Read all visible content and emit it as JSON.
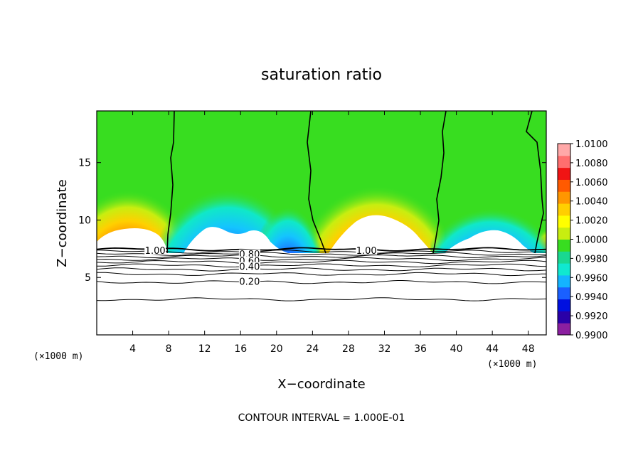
{
  "chart_data": {
    "type": "heatmap",
    "title": "saturation ratio",
    "xlabel": "X−coordinate",
    "ylabel": "Z−coordinate",
    "x_unit_left": "(×1000 m)",
    "x_unit_right": "(×1000 m)",
    "xlim": [
      0,
      50
    ],
    "ylim": [
      0,
      19.5
    ],
    "x_ticks": [
      4,
      8,
      12,
      16,
      20,
      24,
      28,
      32,
      36,
      40,
      44,
      48
    ],
    "y_ticks": [
      5,
      10,
      15
    ],
    "colorbar": {
      "min": 0.99,
      "max": 1.01,
      "labels": [
        "1.0100",
        "1.0080",
        "1.0060",
        "1.0040",
        "1.0020",
        "1.0000",
        "0.9980",
        "0.9960",
        "0.9940",
        "0.9920",
        "0.9900"
      ],
      "colors": [
        "#8b1fa0",
        "#2a00a8",
        "#0010e0",
        "#1a60ff",
        "#14b4ff",
        "#10e8d0",
        "#19d890",
        "#38dd20",
        "#c8ee10",
        "#ffff00",
        "#ffcf00",
        "#ff9600",
        "#ff5a00",
        "#f01414",
        "#ff6e6e",
        "#ffa8a8"
      ]
    },
    "contour_labels": [
      {
        "text": "1.00",
        "x": 6.5,
        "y": 7.3
      },
      {
        "text": "1.00",
        "x": 30.0,
        "y": 7.3
      },
      {
        "text": "0.80",
        "x": 17.0,
        "y": 7.0
      },
      {
        "text": "0.60",
        "x": 17.0,
        "y": 6.4
      },
      {
        "text": "0.40",
        "x": 17.0,
        "y": 5.9
      },
      {
        "text": "0.20",
        "x": 17.0,
        "y": 4.6
      }
    ],
    "contour_levels_below_cloud": [
      7.45,
      7.25,
      7.05,
      6.85,
      6.6,
      6.35,
      6.05,
      5.7,
      5.3,
      4.6,
      3.1
    ]
  },
  "footer": "CONTOUR INTERVAL = 1.000E-01"
}
